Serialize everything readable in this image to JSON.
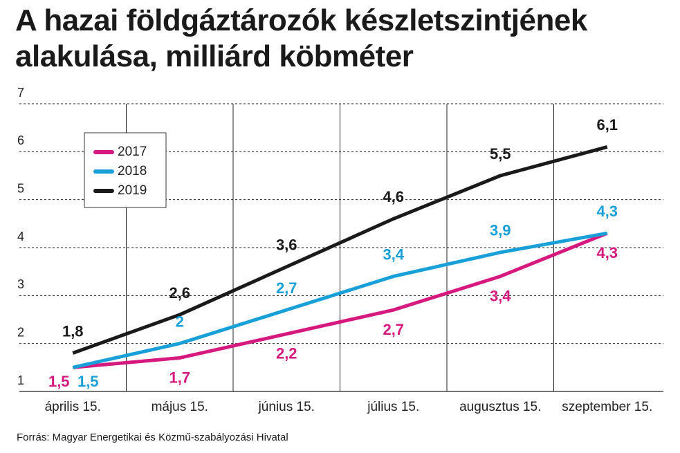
{
  "chart_data": {
    "type": "line",
    "title": "A hazai földgáztározók készletszintjének alakulása, milliárd köbméter",
    "source": "Forrás: Magyar Energetikai és Közmű-szabályozási Hivatal",
    "categories": [
      "április 15.",
      "május 15.",
      "június 15.",
      "július 15.",
      "augusztus 15.",
      "szeptember 15."
    ],
    "series": [
      {
        "name": "2017",
        "color": "#d6197f",
        "values": [
          1.5,
          1.7,
          2.2,
          2.7,
          3.4,
          4.3
        ],
        "value_labels": [
          "1,5",
          "1,7",
          "2,2",
          "2,7",
          "3,4",
          "4,3"
        ]
      },
      {
        "name": "2018",
        "color": "#1aa0d8",
        "values": [
          1.5,
          2.0,
          2.7,
          3.4,
          3.9,
          4.3
        ],
        "value_labels": [
          "1,5",
          "2",
          "2,7",
          "3,4",
          "3,9",
          "4,3"
        ]
      },
      {
        "name": "2019",
        "color": "#1a1a1a",
        "values": [
          1.8,
          2.6,
          3.6,
          4.6,
          5.5,
          6.1
        ],
        "value_labels": [
          "1,8",
          "2,6",
          "3,6",
          "4,6",
          "5,5",
          "6,1"
        ]
      }
    ],
    "ylim": [
      1,
      7
    ],
    "yticks": [
      1,
      2,
      3,
      4,
      5,
      6,
      7
    ],
    "grid": true
  }
}
